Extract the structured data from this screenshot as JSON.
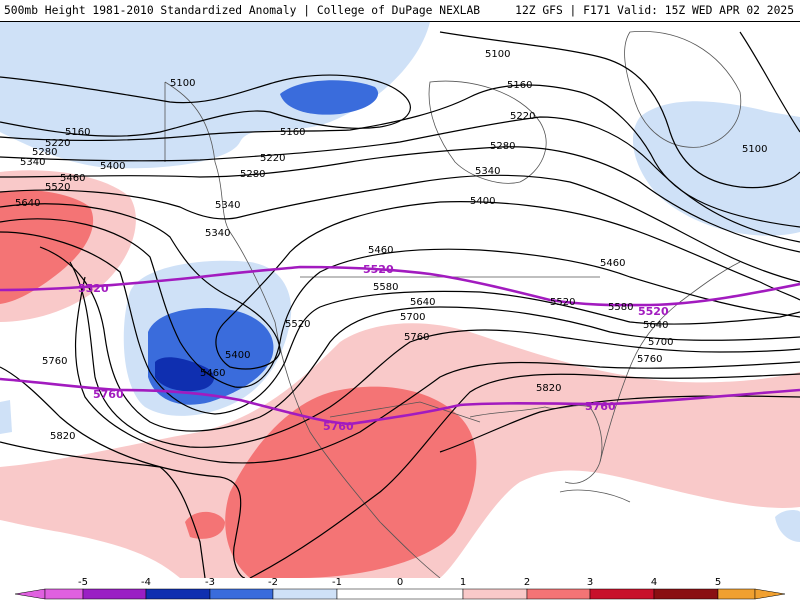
{
  "header": {
    "left": "500mb Height 1981-2010 Standardized Anomaly | College of DuPage NEXLAB",
    "right": "12Z GFS | F171 Valid: 15Z WED APR 02 2025"
  },
  "colors": {
    "neg5": "#e060e0",
    "neg4": "#9a1fc4",
    "neg3": "#0f2fb0",
    "neg2": "#3a6cdc",
    "neg1": "#cfe1f7",
    "zero": "#ffffff",
    "pos1": "#f9c9c9",
    "pos2": "#f47475",
    "pos3": "#c8102b",
    "pos4": "#8a0f12",
    "pos5": "#f0a030",
    "contour": "#000000",
    "highlight_contour": "#a21bbf",
    "coast": "#555555"
  },
  "contour_labels": {
    "5100": "5100",
    "5160": "5160",
    "5220": "5220",
    "5280": "5280",
    "5340": "5340",
    "5400": "5400",
    "5460": "5460",
    "5520": "5520",
    "5580": "5580",
    "5640": "5640",
    "5700": "5700",
    "5760": "5760",
    "5820": "5820"
  },
  "colorbar": {
    "labels": [
      "-5",
      "-4",
      "-3",
      "-2",
      "-1",
      "0",
      "1",
      "2",
      "3",
      "4",
      "5"
    ]
  }
}
